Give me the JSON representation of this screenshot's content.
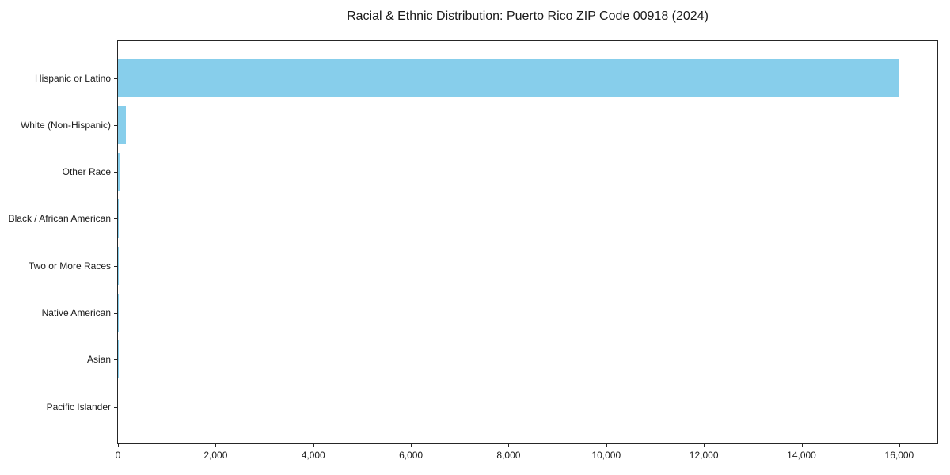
{
  "chart_data": {
    "type": "bar",
    "orientation": "horizontal",
    "title": "Racial & Ethnic Distribution: Puerto Rico ZIP Code 00918 (2024)",
    "categories": [
      "Hispanic or Latino",
      "White (Non-Hispanic)",
      "Other Race",
      "Black / African American",
      "Two or More Races",
      "Native American",
      "Asian",
      "Pacific Islander"
    ],
    "values": [
      15980,
      160,
      30,
      12,
      6,
      3,
      2,
      0
    ],
    "bar_color": "#87CEEB",
    "xlabel": "",
    "ylabel": "",
    "xlim": [
      0,
      16780
    ],
    "x_ticks": [
      0,
      2000,
      4000,
      6000,
      8000,
      10000,
      12000,
      14000,
      16000
    ],
    "x_tick_labels": [
      "0",
      "2,000",
      "4,000",
      "6,000",
      "8,000",
      "10,000",
      "12,000",
      "14,000",
      "16,000"
    ],
    "grid": false,
    "legend_position": "none",
    "spine_color": "#262626",
    "text_color": "#1a1a1a"
  }
}
